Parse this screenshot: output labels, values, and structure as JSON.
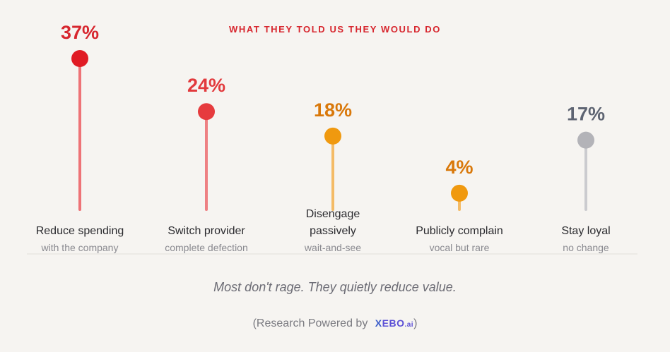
{
  "chart_data": {
    "type": "lollipop",
    "title": "WHAT THEY TOLD US THEY WOULD DO",
    "ylim": [
      0,
      37
    ],
    "unit": "%",
    "categories": [
      {
        "label": "Reduce spending",
        "label_lines": [
          "Reduce spending"
        ],
        "sublabel": "with the company",
        "value": 37,
        "value_label": "37%",
        "dot_color": "#e01b24",
        "stem_color": "#ee7377",
        "value_color": "#d7262e"
      },
      {
        "label": "Switch provider",
        "label_lines": [
          "Switch provider"
        ],
        "sublabel": "complete defection",
        "value": 24,
        "value_label": "24%",
        "dot_color": "#e63b3e",
        "stem_color": "#ee8083",
        "value_color": "#e23a3d"
      },
      {
        "label": "Disengage passively",
        "label_lines": [
          "Disengage",
          "passively"
        ],
        "sublabel": "wait-and-see",
        "value": 18,
        "value_label": "18%",
        "dot_color": "#f0990f",
        "stem_color": "#f4bb66",
        "value_color": "#d9780a"
      },
      {
        "label": "Publicly complain",
        "label_lines": [
          "Publicly complain"
        ],
        "sublabel": "vocal but rare",
        "value": 4,
        "value_label": "4%",
        "dot_color": "#f0990f",
        "stem_color": "#f4bb66",
        "value_color": "#d9780a"
      },
      {
        "label": "Stay loyal",
        "label_lines": [
          "Stay loyal"
        ],
        "sublabel": "no change",
        "value": 17,
        "value_label": "17%",
        "dot_color": "#b3b3b8",
        "stem_color": "#cbcbcf",
        "value_color": "#5e6472"
      }
    ]
  },
  "tagline": "Most don't rage. They quietly reduce value.",
  "credit": {
    "prefix": "(Research Powered by",
    "brand_x": "X",
    "brand_main": "EBO",
    "brand_suffix": ".ai",
    "suffix": ")"
  }
}
